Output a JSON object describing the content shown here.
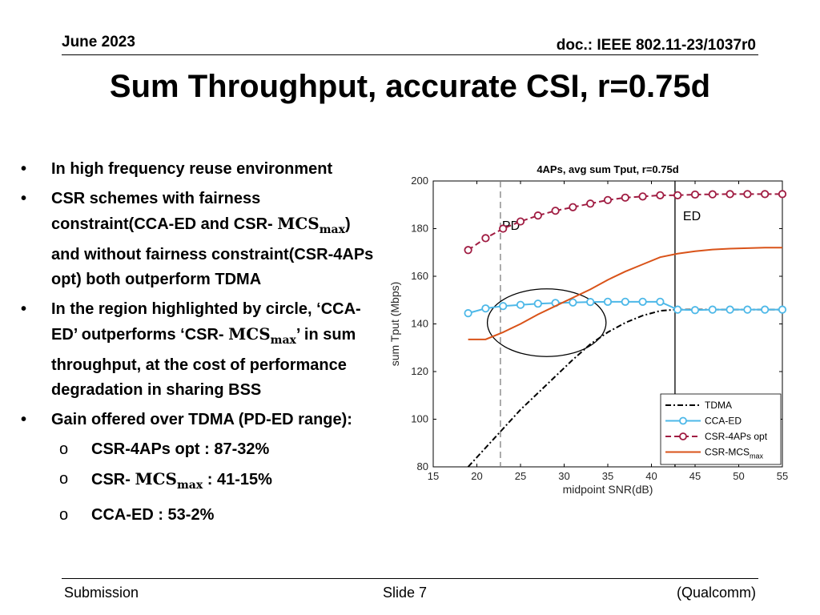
{
  "header": {
    "date": "June 2023",
    "doc": "doc.: IEEE 802.11-23/1037r0"
  },
  "title": "Sum Throughput, accurate CSI, r=0.75d",
  "bullets": {
    "b1": "In high frequency reuse environment",
    "b2_pre": "CSR schemes with fairness constraint(CCA-ED and CSR- ",
    "b2_post": ") and without fairness constraint(CSR-4APs opt) both outperform TDMA",
    "b3_pre": "In the region highlighted by circle, ‘CCA-ED’ outperforms ‘CSR- ",
    "b3_post": "’ in sum throughput, at the cost of performance degradation in sharing BSS",
    "b4": "Gain offered over TDMA (PD-ED range):",
    "s1": "CSR-4APs opt : 87-32%",
    "s2_pre": "CSR- ",
    "s2_post": " : 41-15%",
    "s3": "CCA-ED : 53-2%",
    "mcs": "MCS",
    "max": "max",
    "bullet_char": "•",
    "sub_char": "o"
  },
  "footer": {
    "left": "Submission",
    "center": "Slide 7",
    "right": "(Qualcomm)"
  },
  "chart_data": {
    "type": "line",
    "title": "4APs, avg sum Tput, r=0.75d",
    "xlabel": "midpoint SNR(dB)",
    "ylabel": "sum Tput (Mbps)",
    "xlim": [
      15,
      55
    ],
    "ylim": [
      80,
      200
    ],
    "xticks": [
      15,
      20,
      25,
      30,
      35,
      40,
      45,
      50,
      55
    ],
    "yticks": [
      80,
      100,
      120,
      140,
      160,
      180,
      200
    ],
    "vlines": [
      {
        "x": 22.7,
        "label": "PD",
        "style": "dashed",
        "color": "#7f7f7f"
      },
      {
        "x": 42.7,
        "label": "ED",
        "style": "solid",
        "color": "#000000"
      }
    ],
    "series": [
      {
        "name": "TDMA",
        "color": "#000000",
        "dash": "dashdot",
        "marker": "none",
        "x": [
          19,
          21,
          23,
          25,
          27,
          29,
          31,
          33,
          35,
          37,
          39,
          41,
          42.7,
          45,
          47,
          49,
          51,
          53,
          55
        ],
        "y": [
          80,
          88,
          96,
          104,
          111,
          118,
          125,
          131.5,
          136.5,
          140.5,
          143.5,
          145.5,
          146,
          146,
          146,
          146,
          146,
          146,
          146
        ]
      },
      {
        "name": "CCA-ED",
        "color": "#4db8e8",
        "dash": "solid",
        "marker": "circle",
        "x": [
          19,
          21,
          23,
          25,
          27,
          29,
          31,
          33,
          35,
          37,
          39,
          41,
          43,
          45,
          47,
          49,
          51,
          53,
          55
        ],
        "y": [
          144.5,
          146.5,
          147.5,
          148,
          148.5,
          148.8,
          149,
          149.2,
          149.3,
          149.3,
          149.3,
          149.3,
          146,
          145.8,
          146,
          146,
          146,
          146,
          146
        ]
      },
      {
        "name": "CSR-4APs opt",
        "color": "#a01c42",
        "dash": "dashed",
        "marker": "circle",
        "x": [
          19,
          21,
          23,
          25,
          27,
          29,
          31,
          33,
          35,
          37,
          39,
          41,
          43,
          45,
          47,
          49,
          51,
          53,
          55
        ],
        "y": [
          171,
          176,
          180,
          183,
          185.5,
          187.5,
          189,
          190.5,
          192,
          193,
          193.5,
          194,
          194,
          194.3,
          194.4,
          194.5,
          194.5,
          194.5,
          194.5
        ]
      },
      {
        "name": "CSR-MCS",
        "name_sub": "max",
        "color": "#d95319",
        "dash": "solid",
        "marker": "none",
        "x": [
          19,
          21,
          23,
          25,
          27,
          29,
          31,
          33,
          35,
          37,
          39,
          41,
          43,
          45,
          47,
          49,
          51,
          53,
          55
        ],
        "y": [
          133.5,
          133.5,
          136.5,
          140,
          144,
          147.5,
          151,
          154.5,
          158.5,
          162,
          165,
          168,
          169.5,
          170.5,
          171.2,
          171.6,
          171.8,
          172,
          172
        ]
      }
    ],
    "highlight_ellipse": {
      "cx": 28,
      "cy": 140.5,
      "rx": 6.8,
      "ry": 14.2
    },
    "legend_position": "bottom-right",
    "grid": false
  }
}
